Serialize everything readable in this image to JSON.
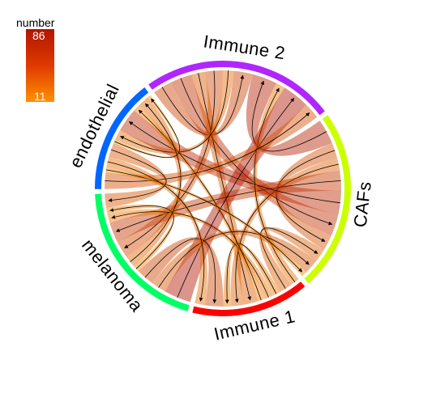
{
  "chart_data": {
    "type": "chord",
    "legend": {
      "title": "number",
      "max_label": "86",
      "min_label": "11",
      "min": 11,
      "max": 86
    },
    "sectors": [
      {
        "name": "Immune 2",
        "color": "#b026ff"
      },
      {
        "name": "CAFs",
        "color": "#ccff00"
      },
      {
        "name": "Immune 1",
        "color": "#ff0000"
      },
      {
        "name": "melanoma",
        "color": "#00ff66"
      },
      {
        "name": "endothelial",
        "color": "#0066ff"
      }
    ],
    "links": [
      {
        "from": "Immune 2",
        "to": "Immune 2",
        "value": 60
      },
      {
        "from": "Immune 2",
        "to": "CAFs",
        "value": 70
      },
      {
        "from": "Immune 2",
        "to": "Immune 1",
        "value": 45
      },
      {
        "from": "Immune 2",
        "to": "melanoma",
        "value": 55
      },
      {
        "from": "Immune 2",
        "to": "endothelial",
        "value": 35
      },
      {
        "from": "CAFs",
        "to": "Immune 2",
        "value": 80
      },
      {
        "from": "CAFs",
        "to": "CAFs",
        "value": 50
      },
      {
        "from": "CAFs",
        "to": "Immune 1",
        "value": 40
      },
      {
        "from": "CAFs",
        "to": "melanoma",
        "value": 65
      },
      {
        "from": "CAFs",
        "to": "endothelial",
        "value": 75
      },
      {
        "from": "Immune 1",
        "to": "Immune 2",
        "value": 30
      },
      {
        "from": "Immune 1",
        "to": "CAFs",
        "value": 42
      },
      {
        "from": "Immune 1",
        "to": "Immune 1",
        "value": 25
      },
      {
        "from": "Immune 1",
        "to": "melanoma",
        "value": 28
      },
      {
        "from": "Immune 1",
        "to": "endothelial",
        "value": 22
      },
      {
        "from": "melanoma",
        "to": "Immune 2",
        "value": 86
      },
      {
        "from": "melanoma",
        "to": "CAFs",
        "value": 48
      },
      {
        "from": "melanoma",
        "to": "Immune 1",
        "value": 58
      },
      {
        "from": "melanoma",
        "to": "melanoma",
        "value": 20
      },
      {
        "from": "melanoma",
        "to": "endothelial",
        "value": 38
      },
      {
        "from": "endothelial",
        "to": "Immune 2",
        "value": 52
      },
      {
        "from": "endothelial",
        "to": "CAFs",
        "value": 18
      },
      {
        "from": "endothelial",
        "to": "Immune 1",
        "value": 33
      },
      {
        "from": "endothelial",
        "to": "melanoma",
        "value": 46
      },
      {
        "from": "endothelial",
        "to": "endothelial",
        "value": 11
      }
    ]
  }
}
